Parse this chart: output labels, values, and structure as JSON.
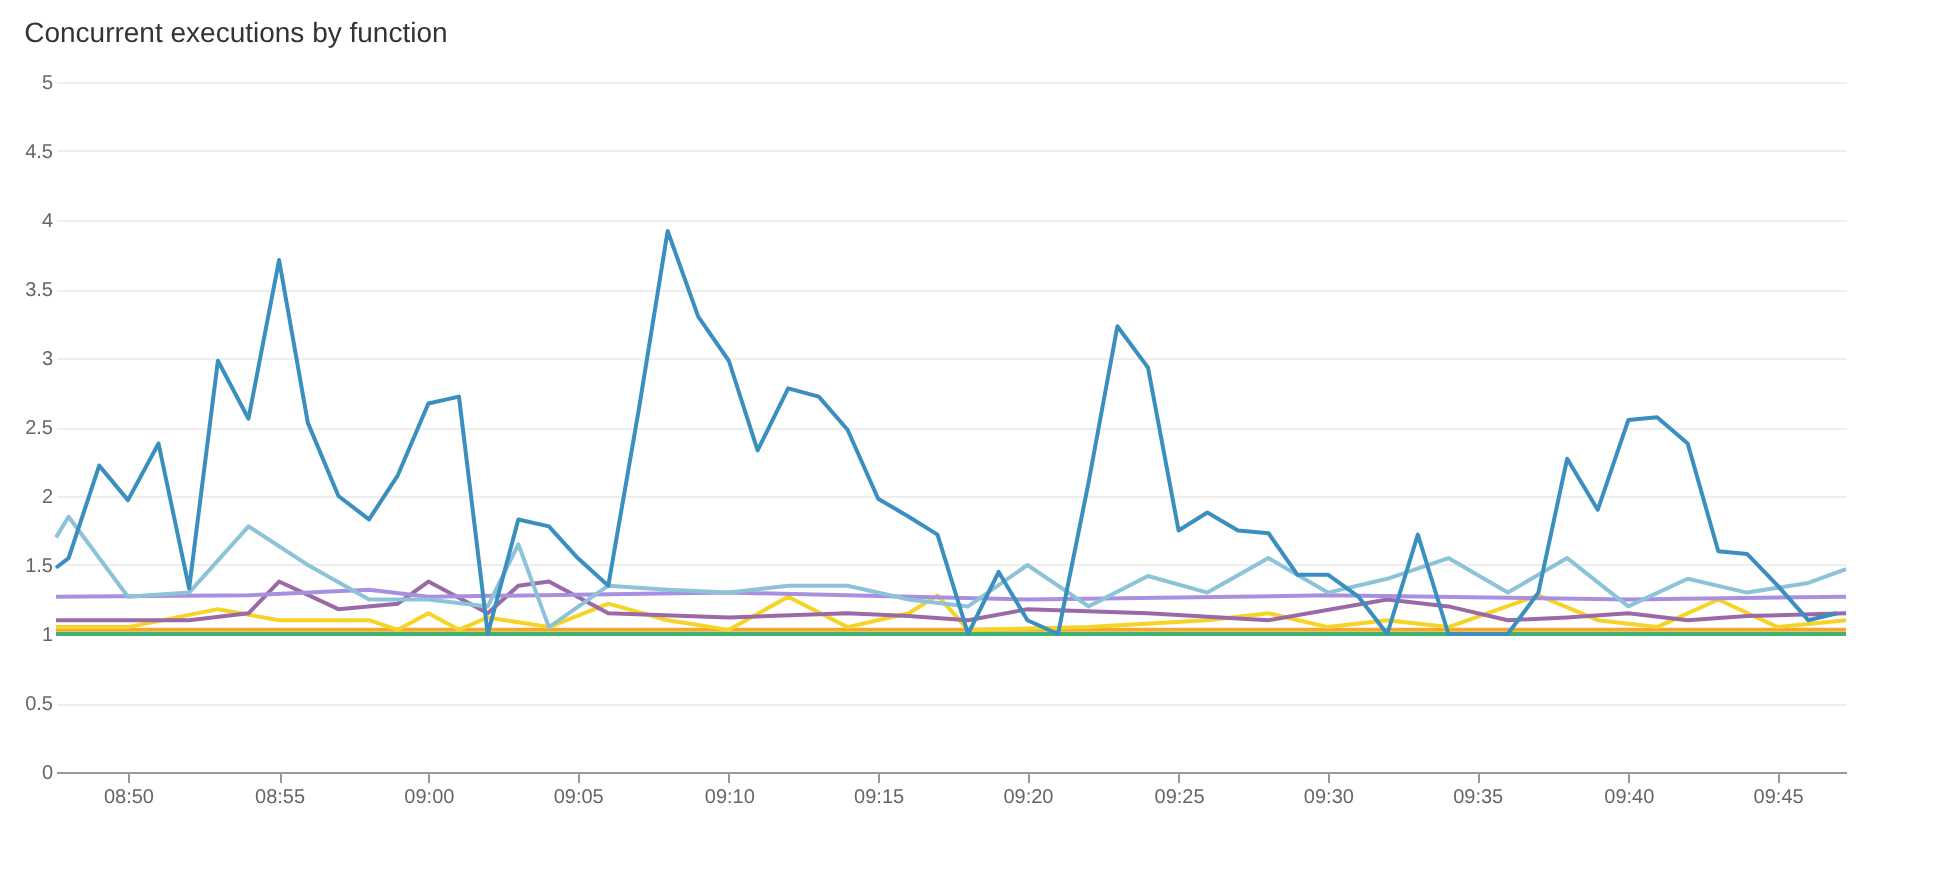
{
  "chart_data": {
    "type": "line",
    "title": "Concurrent executions by function",
    "x": [
      8.793,
      8.8,
      8.817,
      8.833,
      8.85,
      8.867,
      8.883,
      8.9,
      8.917,
      8.933,
      8.95,
      8.967,
      8.983,
      9.0,
      9.017,
      9.033,
      9.05,
      9.067,
      9.083,
      9.1,
      9.117,
      9.133,
      9.15,
      9.167,
      9.183,
      9.2,
      9.217,
      9.233,
      9.25,
      9.267,
      9.283,
      9.3,
      9.317,
      9.333,
      9.35,
      9.367,
      9.383,
      9.4,
      9.417,
      9.433,
      9.45,
      9.467,
      9.483,
      9.5,
      9.517,
      9.533,
      9.55,
      9.567,
      9.583,
      9.6,
      9.617,
      9.633,
      9.65,
      9.667,
      9.683,
      9.7,
      9.717,
      9.733,
      9.75,
      9.767,
      9.783
    ],
    "series": [
      {
        "color": "#f0a830",
        "x": [
          8.793,
          9.0,
          9.2,
          9.4,
          9.6,
          9.788
        ],
        "values": [
          1.03,
          1.03,
          1.03,
          1.03,
          1.03,
          1.03
        ]
      },
      {
        "color": "#3cb371",
        "x": [
          8.793,
          9.788
        ],
        "values": [
          1.0,
          1.0
        ]
      },
      {
        "color": "#f5d327",
        "x": [
          8.793,
          8.833,
          8.883,
          8.917,
          8.967,
          8.983,
          9.0,
          9.017,
          9.033,
          9.067,
          9.1,
          9.133,
          9.167,
          9.2,
          9.233,
          9.267,
          9.283,
          9.3,
          9.367,
          9.433,
          9.467,
          9.5,
          9.533,
          9.567,
          9.617,
          9.65,
          9.683,
          9.717,
          9.75,
          9.788
        ],
        "values": [
          1.05,
          1.05,
          1.18,
          1.1,
          1.1,
          1.03,
          1.15,
          1.03,
          1.12,
          1.05,
          1.22,
          1.1,
          1.03,
          1.27,
          1.05,
          1.15,
          1.28,
          1.03,
          1.05,
          1.1,
          1.15,
          1.05,
          1.1,
          1.05,
          1.28,
          1.1,
          1.05,
          1.25,
          1.05,
          1.1
        ]
      },
      {
        "color": "#9b6aa6",
        "x": [
          8.793,
          8.867,
          8.9,
          8.917,
          8.95,
          8.983,
          9.0,
          9.033,
          9.05,
          9.067,
          9.1,
          9.167,
          9.233,
          9.267,
          9.3,
          9.333,
          9.4,
          9.467,
          9.533,
          9.567,
          9.6,
          9.633,
          9.667,
          9.7,
          9.733,
          9.788
        ],
        "values": [
          1.1,
          1.1,
          1.15,
          1.38,
          1.18,
          1.22,
          1.38,
          1.15,
          1.35,
          1.38,
          1.15,
          1.12,
          1.15,
          1.13,
          1.1,
          1.18,
          1.15,
          1.1,
          1.25,
          1.2,
          1.1,
          1.12,
          1.15,
          1.1,
          1.13,
          1.15
        ]
      },
      {
        "color": "#a98fe0",
        "x": [
          8.793,
          8.9,
          8.967,
          9.0,
          9.167,
          9.333,
          9.5,
          9.667,
          9.788
        ],
        "values": [
          1.27,
          1.28,
          1.32,
          1.27,
          1.3,
          1.25,
          1.28,
          1.25,
          1.27
        ]
      },
      {
        "color": "#8cc3d9",
        "x": [
          8.793,
          8.8,
          8.833,
          8.867,
          8.9,
          8.933,
          8.967,
          9.0,
          9.033,
          9.05,
          9.067,
          9.1,
          9.133,
          9.167,
          9.2,
          9.233,
          9.267,
          9.3,
          9.333,
          9.367,
          9.4,
          9.433,
          9.467,
          9.5,
          9.533,
          9.567,
          9.6,
          9.633,
          9.667,
          9.7,
          9.733,
          9.767,
          9.788
        ],
        "values": [
          1.7,
          1.85,
          1.27,
          1.3,
          1.78,
          1.5,
          1.25,
          1.25,
          1.2,
          1.65,
          1.05,
          1.35,
          1.32,
          1.3,
          1.35,
          1.35,
          1.25,
          1.2,
          1.5,
          1.2,
          1.42,
          1.3,
          1.55,
          1.3,
          1.4,
          1.55,
          1.3,
          1.55,
          1.2,
          1.4,
          1.3,
          1.37,
          1.47
        ]
      },
      {
        "color": "#3a8fbf",
        "values": [
          1.48,
          1.55,
          2.22,
          1.97,
          2.38,
          1.33,
          2.98,
          2.56,
          3.71,
          2.53,
          2.0,
          1.83,
          2.15,
          2.67,
          2.72,
          1.0,
          1.83,
          1.78,
          1.55,
          1.35,
          2.63,
          3.92,
          3.3,
          2.98,
          2.33,
          2.78,
          2.72,
          2.48,
          1.98,
          1.85,
          1.72,
          1.0,
          1.45,
          1.1,
          1.0,
          2.1,
          3.23,
          2.93,
          1.75,
          1.88,
          1.75,
          1.73,
          1.43,
          1.43,
          1.27,
          1.0,
          1.72,
          1.0,
          1.0,
          1.0,
          1.3,
          2.27,
          1.9,
          2.55,
          2.57,
          2.38,
          1.6,
          1.58,
          1.35,
          1.1,
          1.15
        ]
      }
    ],
    "xlim": [
      8.793,
      9.788
    ],
    "xticks": [
      {
        "value": 8.833,
        "label": "08:50"
      },
      {
        "value": 8.917,
        "label": "08:55"
      },
      {
        "value": 9.0,
        "label": "09:00"
      },
      {
        "value": 9.083,
        "label": "09:05"
      },
      {
        "value": 9.167,
        "label": "09:10"
      },
      {
        "value": 9.25,
        "label": "09:15"
      },
      {
        "value": 9.333,
        "label": "09:20"
      },
      {
        "value": 9.417,
        "label": "09:25"
      },
      {
        "value": 9.5,
        "label": "09:30"
      },
      {
        "value": 9.583,
        "label": "09:35"
      },
      {
        "value": 9.667,
        "label": "09:40"
      },
      {
        "value": 9.75,
        "label": "09:45"
      }
    ],
    "ylim": [
      0,
      5
    ],
    "yticks": [
      0,
      0.5,
      1,
      1.5,
      2,
      2.5,
      3,
      3.5,
      4,
      4.5,
      5
    ],
    "grid": "y",
    "marker": "none",
    "line_style": "solid"
  }
}
